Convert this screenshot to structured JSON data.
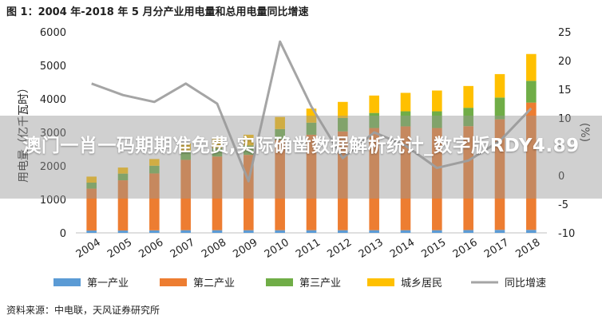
{
  "figure_title": "图 1：2004 年-2018 年 5 月分产业用电量和总用电量同比增速",
  "source_note": "资料来源：中电联，天风证券研究所",
  "banner_text": "澳门一肖一码期期准免费,实际确凿数据解析统计_数字版RDY4.89",
  "chart_data": {
    "type": "bar",
    "stacked": true,
    "categories": [
      "2004",
      "2005",
      "2006",
      "2007",
      "2008",
      "2009",
      "2010",
      "2011",
      "2012",
      "2013",
      "2014",
      "2015",
      "2016",
      "2017",
      "2018"
    ],
    "ylabel": "用电量（亿千瓦时）",
    "ylabel_right": "(%)",
    "ylim": [
      0,
      6000
    ],
    "yticks": [
      "0",
      "1000",
      "2000",
      "3000",
      "4000",
      "5000",
      "6000"
    ],
    "ylim_right": [
      -10,
      25
    ],
    "yticks_right": [
      "-10",
      "-5",
      "0",
      "5",
      "10",
      "15",
      "20",
      "25"
    ],
    "grid": false,
    "legend_position": "bottom",
    "colors": {
      "第一产业": "#5b9bd5",
      "第二产业": "#ed7d31",
      "第三产业": "#70ad47",
      "城乡居民": "#ffc000",
      "同比增速": "#a5a5a5"
    },
    "series": [
      {
        "name": "第一产业",
        "axis": "left",
        "values": [
          70,
          70,
          75,
          80,
          80,
          80,
          80,
          80,
          80,
          80,
          80,
          80,
          85,
          90,
          90
        ]
      },
      {
        "name": "第二产业",
        "axis": "left",
        "values": [
          1250,
          1500,
          1700,
          2100,
          2200,
          2250,
          2700,
          2850,
          2950,
          3050,
          3100,
          3050,
          3100,
          3300,
          3800
        ]
      },
      {
        "name": "第三产业",
        "axis": "left",
        "values": [
          180,
          200,
          230,
          240,
          250,
          280,
          320,
          360,
          400,
          450,
          450,
          500,
          550,
          650,
          650
        ]
      },
      {
        "name": "城乡居民",
        "axis": "left",
        "values": [
          180,
          180,
          200,
          250,
          280,
          320,
          360,
          420,
          480,
          520,
          550,
          620,
          650,
          700,
          800
        ]
      },
      {
        "name": "同比增速",
        "axis": "right",
        "type": "line",
        "values": [
          16,
          14,
          12.8,
          16,
          12.5,
          -1,
          23.3,
          12,
          3,
          7.5,
          5.2,
          1.3,
          2.6,
          6,
          11.7
        ]
      }
    ]
  }
}
